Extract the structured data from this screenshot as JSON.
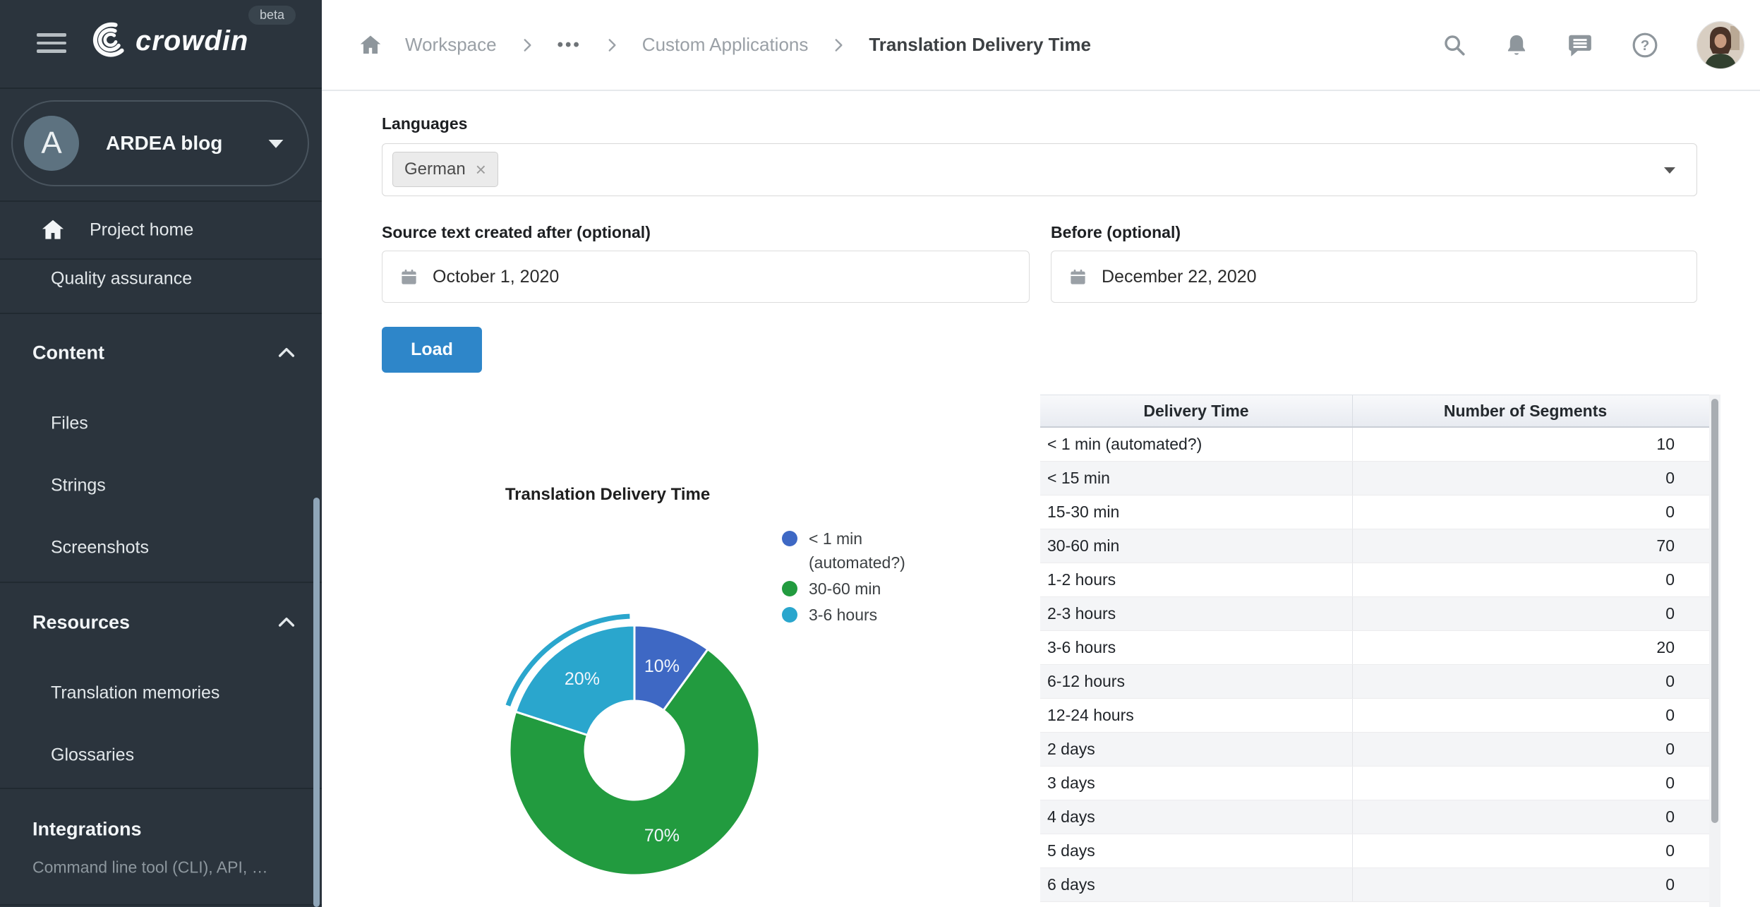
{
  "sidebar": {
    "logo_text": "crowdin",
    "beta_label": "beta",
    "project": {
      "initial": "A",
      "name": "ARDEA blog"
    },
    "nav": {
      "project_home": "Project home",
      "quality_assurance": "Quality assurance"
    },
    "sections": {
      "content": {
        "label": "Content",
        "items": [
          "Files",
          "Strings",
          "Screenshots"
        ]
      },
      "resources": {
        "label": "Resources",
        "items": [
          "Translation memories",
          "Glossaries"
        ]
      }
    },
    "integrations": {
      "label": "Integrations",
      "subtitle": "Command line tool (CLI), API, …"
    }
  },
  "topbar": {
    "breadcrumb": [
      "Workspace",
      "•••",
      "Custom Applications",
      "Translation Delivery Time"
    ],
    "icons": [
      "search",
      "notifications",
      "messages",
      "help",
      "avatar"
    ]
  },
  "filters": {
    "languages_label": "Languages",
    "selected_language": "German",
    "remove_glyph": "×",
    "after_label": "Source text created after (optional)",
    "after_value": "October 1, 2020",
    "before_label": "Before (optional)",
    "before_value": "December 22, 2020",
    "load_label": "Load"
  },
  "chart_data": {
    "type": "pie",
    "donut": true,
    "title": "Translation Delivery Time",
    "legend_position": "right",
    "labels": [
      "10%",
      "70%",
      "20%"
    ],
    "slices": [
      {
        "label": "< 1 min (automated?)",
        "value": 10,
        "color": "#3E68C4",
        "highlighted": false
      },
      {
        "label": "30-60 min",
        "value": 70,
        "color": "#229B3F",
        "highlighted": false
      },
      {
        "label": "3-6 hours",
        "value": 20,
        "color": "#2AA6CD",
        "highlighted": true
      }
    ]
  },
  "table": {
    "headers": [
      "Delivery Time",
      "Number of Segments"
    ],
    "rows": [
      [
        "< 1 min (automated?)",
        "10"
      ],
      [
        "< 15 min",
        "0"
      ],
      [
        "15-30 min",
        "0"
      ],
      [
        "30-60 min",
        "70"
      ],
      [
        "1-2 hours",
        "0"
      ],
      [
        "2-3 hours",
        "0"
      ],
      [
        "3-6 hours",
        "20"
      ],
      [
        "6-12 hours",
        "0"
      ],
      [
        "12-24 hours",
        "0"
      ],
      [
        "2 days",
        "0"
      ],
      [
        "3 days",
        "0"
      ],
      [
        "4 days",
        "0"
      ],
      [
        "5 days",
        "0"
      ],
      [
        "6 days",
        "0"
      ]
    ]
  }
}
